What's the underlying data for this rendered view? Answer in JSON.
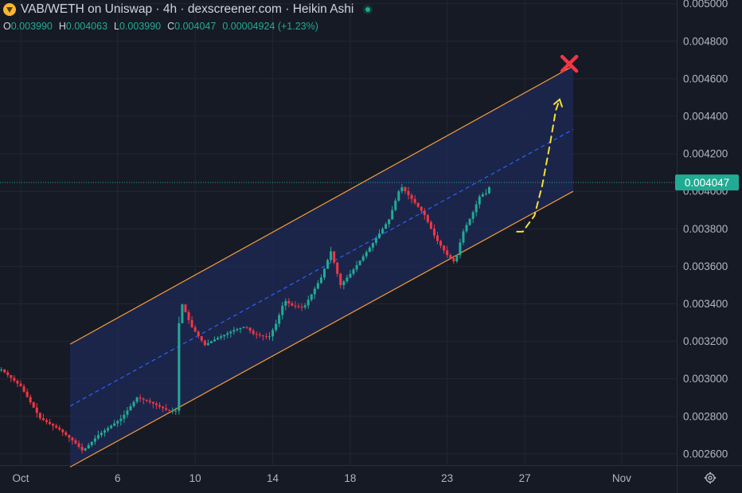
{
  "header": {
    "title": "VAB/WETH on Uniswap · 4h · dexscreener.com · Heikin Ashi",
    "ohlc": {
      "o_label": "O",
      "o_value": "0.003990",
      "h_label": "H",
      "h_value": "0.004063",
      "l_label": "L",
      "l_value": "0.003990",
      "c_label": "C",
      "c_value": "0.004047",
      "change": "0.00004924 (+1.23%)"
    },
    "status_color": "#22ab94"
  },
  "colors": {
    "background": "#161a25",
    "up": "#22ab94",
    "down": "#f23645",
    "channel_fill": "#1e2a57",
    "channel_line": "#f59c3c",
    "midline": "#2962ff",
    "projection": "#f5e13b",
    "target_x": "#f23645",
    "price_line": "#22ab94"
  },
  "chart_data": {
    "type": "candlestick",
    "style": "Heikin Ashi",
    "interval": "4h",
    "y_axis": {
      "min": 0.00254,
      "max": 0.00502,
      "ticks": [
        "0.002600",
        "0.002800",
        "0.003000",
        "0.003200",
        "0.003400",
        "0.003600",
        "0.003800",
        "0.004000",
        "0.004200",
        "0.004400",
        "0.004600",
        "0.004800",
        "0.005000"
      ]
    },
    "x_axis": {
      "start_day": 30.0,
      "end_day": 38.6,
      "ticks": [
        {
          "label": "Oct",
          "day": 1
        },
        {
          "label": "6",
          "day": 6
        },
        {
          "label": "10",
          "day": 10
        },
        {
          "label": "14",
          "day": 14
        },
        {
          "label": "18",
          "day": 18
        },
        {
          "label": "23",
          "day": 23
        },
        {
          "label": "27",
          "day": 27
        },
        {
          "label": "Nov",
          "day": 32
        }
      ]
    },
    "last_price": "0.004047",
    "last_price_value": 0.004047,
    "channel": {
      "start_day": 3.55,
      "end_day": 29.5,
      "upper": [
        0.003185,
        0.004668
      ],
      "lower": [
        0.00253,
        0.004
      ],
      "mid": [
        0.002855,
        0.00433
      ]
    },
    "projection_path": [
      {
        "day": 26.6,
        "price": 0.003785
      },
      {
        "day": 26.9,
        "price": 0.003785
      },
      {
        "day": 27.5,
        "price": 0.00387
      },
      {
        "day": 27.9,
        "price": 0.00403
      },
      {
        "day": 28.3,
        "price": 0.00425
      },
      {
        "day": 28.6,
        "price": 0.00443
      },
      {
        "day": 28.8,
        "price": 0.00449
      }
    ],
    "target_marker": {
      "day": 29.3,
      "price": 0.00468
    },
    "anchors": [
      [
        0.0,
        0.00305
      ],
      [
        1.0,
        0.00296
      ],
      [
        2.0,
        0.00279
      ],
      [
        3.0,
        0.00273
      ],
      [
        3.8,
        0.00266
      ],
      [
        4.2,
        0.002615
      ],
      [
        5.0,
        0.0027
      ],
      [
        6.2,
        0.00279
      ],
      [
        7.0,
        0.0029
      ],
      [
        7.6,
        0.00288
      ],
      [
        8.6,
        0.00283
      ],
      [
        9.05,
        0.00283
      ],
      [
        9.2,
        0.00343
      ],
      [
        9.8,
        0.00328
      ],
      [
        10.5,
        0.00318
      ],
      [
        11.0,
        0.00321
      ],
      [
        12.0,
        0.00326
      ],
      [
        12.6,
        0.00328
      ],
      [
        13.0,
        0.00324
      ],
      [
        13.8,
        0.00322
      ],
      [
        14.2,
        0.0033
      ],
      [
        14.6,
        0.00342
      ],
      [
        15.0,
        0.00339
      ],
      [
        15.6,
        0.00338
      ],
      [
        16.5,
        0.00354
      ],
      [
        17.0,
        0.00368
      ],
      [
        17.5,
        0.0035
      ],
      [
        18.0,
        0.00356
      ],
      [
        19.0,
        0.0037
      ],
      [
        20.0,
        0.00385
      ],
      [
        20.6,
        0.00403
      ],
      [
        21.0,
        0.00398
      ],
      [
        21.8,
        0.00388
      ],
      [
        22.4,
        0.00375
      ],
      [
        23.0,
        0.00366
      ],
      [
        23.4,
        0.00362
      ],
      [
        23.8,
        0.00378
      ],
      [
        24.3,
        0.00388
      ],
      [
        24.7,
        0.00398
      ],
      [
        25.0,
        0.00399
      ],
      [
        25.3,
        0.004047
      ]
    ]
  }
}
